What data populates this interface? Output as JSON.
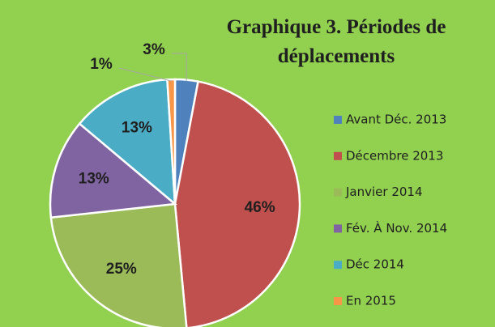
{
  "chart_data": {
    "type": "pie",
    "title": "Graphique 3. Périodes de déplacements",
    "categories": [
      "Avant Déc. 2013",
      "Décembre 2013",
      "Janvier 2014",
      "Fév. À Nov. 2014",
      "Déc 2014",
      "En 2015"
    ],
    "values": [
      3,
      46,
      25,
      13,
      13,
      1
    ],
    "value_labels": [
      "3%",
      "46%",
      "25%",
      "13%",
      "13%",
      "1%"
    ],
    "colors": [
      "#4f81bd",
      "#c0504d",
      "#9bbb59",
      "#8064a2",
      "#4bacc6",
      "#f79646"
    ],
    "legend": "right"
  }
}
